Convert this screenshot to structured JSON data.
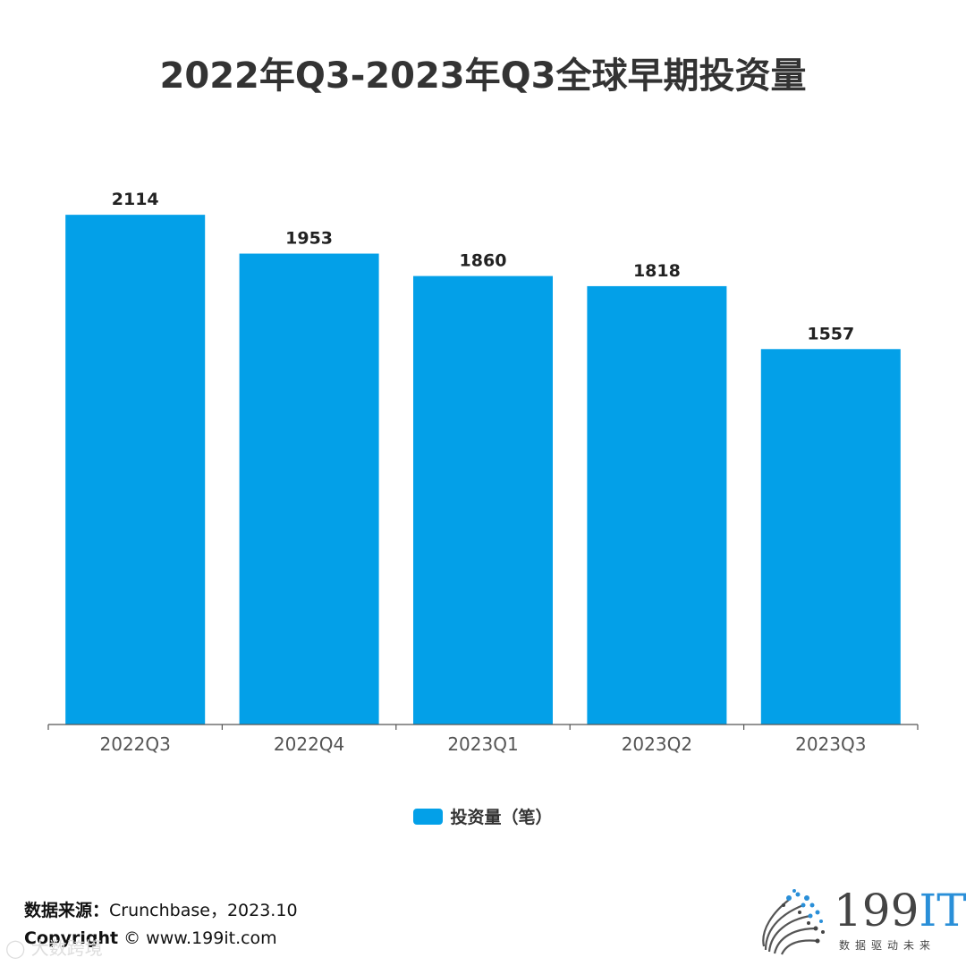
{
  "colors": {
    "bar": "#03a0e8",
    "axis": "#555555",
    "logo_accent": "#2a8fd8"
  },
  "chart_data": {
    "type": "bar",
    "title": "2022年Q3-2023年Q3全球早期投资量",
    "categories": [
      "2022Q3",
      "2022Q4",
      "2023Q1",
      "2023Q2",
      "2023Q3"
    ],
    "series": [
      {
        "name": "投资量（笔）",
        "values": [
          2114,
          1953,
          1860,
          1818,
          1557
        ]
      }
    ],
    "ylim": [
      0,
      2300
    ],
    "grid": false,
    "legend_position": "bottom",
    "data_labels": true
  },
  "footer": {
    "source_label": "数据来源：",
    "source_value": "Crunchbase，2023.10",
    "copyright_label": "Copyright",
    "copyright_value": "© www.199it.com"
  },
  "logo": {
    "name_main": "199",
    "name_accent": "IT",
    "tagline": "数据驱动未来",
    "icon": "dotted-dandelion-icon"
  },
  "watermark": {
    "text": "大数跨境",
    "icon": "wechat-icon"
  }
}
